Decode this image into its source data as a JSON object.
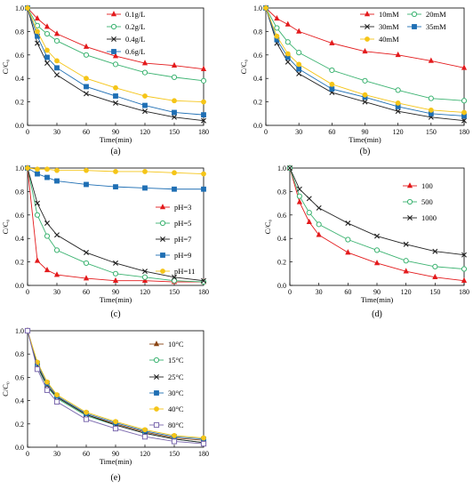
{
  "chart_data": [
    {
      "panel": "(a)",
      "type": "line",
      "xlabel": "Time(min)",
      "ylabel": "C/C₀",
      "x": [
        0,
        10,
        20,
        30,
        60,
        90,
        120,
        150,
        180
      ],
      "xticks": [
        0,
        30,
        60,
        90,
        120,
        150,
        180
      ],
      "yticks": [
        "0.0",
        "0.2",
        "0.4",
        "0.6",
        "0.8",
        "1.0"
      ],
      "xlim": [
        0,
        180
      ],
      "ylim": [
        0,
        1.0
      ],
      "grid": false,
      "legend_position": "top-right",
      "series": [
        {
          "name": "0.1g/L",
          "marker": "triangle",
          "color": "#e31a1c",
          "values": [
            1.0,
            0.91,
            0.84,
            0.78,
            0.67,
            0.59,
            0.53,
            0.51,
            0.48
          ]
        },
        {
          "name": "0.2g/L",
          "marker": "circle",
          "color": "#3cb371",
          "values": [
            1.0,
            0.85,
            0.78,
            0.72,
            0.6,
            0.52,
            0.45,
            0.41,
            0.38
          ]
        },
        {
          "name": "0.4g/L",
          "marker": "x",
          "color": "#222222",
          "values": [
            1.0,
            0.7,
            0.53,
            0.43,
            0.27,
            0.19,
            0.12,
            0.07,
            0.04
          ]
        },
        {
          "name": "0.6g/L",
          "marker": "square",
          "color": "#1f6fb4",
          "values": [
            1.0,
            0.76,
            0.58,
            0.49,
            0.33,
            0.25,
            0.17,
            0.11,
            0.09
          ]
        },
        {
          "name": "",
          "marker": "circle-filled",
          "color": "#f5c518",
          "values": [
            1.0,
            0.8,
            0.64,
            0.55,
            0.4,
            0.32,
            0.25,
            0.21,
            0.2
          ]
        }
      ]
    },
    {
      "panel": "(b)",
      "type": "line",
      "xlabel": "Time(min)",
      "ylabel": "C/C₀",
      "x": [
        0,
        10,
        20,
        30,
        60,
        90,
        120,
        150,
        180
      ],
      "xticks": [
        0,
        30,
        60,
        90,
        120,
        150,
        180
      ],
      "yticks": [
        "0.0",
        "0.2",
        "0.4",
        "0.6",
        "0.8",
        "1.0"
      ],
      "xlim": [
        0,
        180
      ],
      "ylim": [
        0,
        1.0
      ],
      "grid": false,
      "legend_position": "top",
      "series": [
        {
          "name": "10mM",
          "marker": "triangle",
          "color": "#e31a1c",
          "values": [
            1.0,
            0.91,
            0.86,
            0.8,
            0.7,
            0.63,
            0.6,
            0.55,
            0.49
          ]
        },
        {
          "name": "20mM",
          "marker": "circle",
          "color": "#3cb371",
          "values": [
            1.0,
            0.83,
            0.71,
            0.62,
            0.47,
            0.38,
            0.3,
            0.23,
            0.21
          ]
        },
        {
          "name": "30mM",
          "marker": "x",
          "color": "#222222",
          "values": [
            1.0,
            0.7,
            0.54,
            0.44,
            0.28,
            0.2,
            0.12,
            0.07,
            0.04
          ]
        },
        {
          "name": "35mM",
          "marker": "square",
          "color": "#1f6fb4",
          "values": [
            1.0,
            0.73,
            0.58,
            0.48,
            0.31,
            0.24,
            0.16,
            0.1,
            0.08
          ]
        },
        {
          "name": "40mM",
          "marker": "circle-filled",
          "color": "#f5c518",
          "values": [
            1.0,
            0.76,
            0.61,
            0.52,
            0.35,
            0.26,
            0.19,
            0.13,
            0.11
          ]
        }
      ]
    },
    {
      "panel": "(c)",
      "type": "line",
      "xlabel": "Time(min)",
      "ylabel": "C/C₀",
      "x": [
        0,
        10,
        20,
        30,
        60,
        90,
        120,
        150,
        180
      ],
      "xticks": [
        0,
        30,
        60,
        90,
        120,
        150,
        180
      ],
      "yticks": [
        "0.0",
        "0.2",
        "0.4",
        "0.6",
        "0.8",
        "1.0"
      ],
      "xlim": [
        0,
        180
      ],
      "ylim": [
        0,
        1.0
      ],
      "grid": false,
      "legend_position": "right",
      "series": [
        {
          "name": "pH=3",
          "marker": "triangle",
          "color": "#e31a1c",
          "values": [
            1.0,
            0.21,
            0.13,
            0.09,
            0.06,
            0.04,
            0.04,
            0.03,
            0.03
          ]
        },
        {
          "name": "pH=5",
          "marker": "circle",
          "color": "#3cb371",
          "values": [
            1.0,
            0.6,
            0.42,
            0.3,
            0.19,
            0.1,
            0.07,
            0.04,
            0.03
          ]
        },
        {
          "name": "pH=7",
          "marker": "x",
          "color": "#222222",
          "values": [
            1.0,
            0.7,
            0.53,
            0.43,
            0.28,
            0.19,
            0.12,
            0.07,
            0.04
          ]
        },
        {
          "name": "pH=9",
          "marker": "square",
          "color": "#1f6fb4",
          "values": [
            1.0,
            0.95,
            0.92,
            0.89,
            0.86,
            0.84,
            0.83,
            0.82,
            0.82
          ]
        },
        {
          "name": "pH=11",
          "marker": "circle-filled",
          "color": "#f5c518",
          "values": [
            1.0,
            0.99,
            0.99,
            0.98,
            0.98,
            0.97,
            0.97,
            0.96,
            0.95
          ]
        }
      ]
    },
    {
      "panel": "(d)",
      "type": "line",
      "xlabel": "Time(min)",
      "ylabel": "C/C₀",
      "x": [
        0,
        10,
        20,
        30,
        60,
        90,
        120,
        150,
        180
      ],
      "xticks": [
        0,
        30,
        60,
        90,
        120,
        150,
        180
      ],
      "yticks": [
        "0.0",
        "0.2",
        "0.4",
        "0.6",
        "0.8",
        "1.0"
      ],
      "xlim": [
        0,
        180
      ],
      "ylim": [
        0,
        1.0
      ],
      "grid": false,
      "legend_position": "top-right",
      "series": [
        {
          "name": "100",
          "marker": "triangle",
          "color": "#e31a1c",
          "values": [
            1.0,
            0.71,
            0.54,
            0.43,
            0.28,
            0.19,
            0.12,
            0.07,
            0.04
          ]
        },
        {
          "name": "500",
          "marker": "circle",
          "color": "#3cb371",
          "values": [
            1.0,
            0.76,
            0.62,
            0.52,
            0.39,
            0.3,
            0.21,
            0.16,
            0.14
          ]
        },
        {
          "name": "1000",
          "marker": "x",
          "color": "#222222",
          "values": [
            1.0,
            0.82,
            0.74,
            0.66,
            0.53,
            0.42,
            0.35,
            0.29,
            0.26
          ]
        }
      ]
    },
    {
      "panel": "(e)",
      "type": "line",
      "xlabel": "Time(min)",
      "ylabel": "C/C₀",
      "x": [
        0,
        10,
        20,
        30,
        60,
        90,
        120,
        150,
        180
      ],
      "xticks": [
        0,
        30,
        60,
        90,
        120,
        150,
        180
      ],
      "yticks": [
        "0.0",
        "0.2",
        "0.4",
        "0.6",
        "0.8",
        "1.0"
      ],
      "xlim": [
        0,
        180
      ],
      "ylim": [
        0,
        1.0
      ],
      "grid": false,
      "legend_position": "right",
      "series": [
        {
          "name": "10°C",
          "marker": "triangle",
          "color": "#8b4513",
          "values": [
            1.0,
            0.7,
            0.53,
            0.43,
            0.28,
            0.2,
            0.13,
            0.08,
            0.06
          ]
        },
        {
          "name": "15°C",
          "marker": "circle",
          "color": "#3cb371",
          "values": [
            1.0,
            0.69,
            0.52,
            0.42,
            0.27,
            0.19,
            0.12,
            0.07,
            0.04
          ]
        },
        {
          "name": "25°C",
          "marker": "x",
          "color": "#222222",
          "values": [
            1.0,
            0.7,
            0.53,
            0.43,
            0.28,
            0.19,
            0.12,
            0.07,
            0.04
          ]
        },
        {
          "name": "30°C",
          "marker": "square",
          "color": "#1f6fb4",
          "values": [
            1.0,
            0.72,
            0.55,
            0.44,
            0.29,
            0.21,
            0.14,
            0.09,
            0.07
          ]
        },
        {
          "name": "40°C",
          "marker": "circle-filled",
          "color": "#f5c518",
          "values": [
            1.0,
            0.73,
            0.56,
            0.45,
            0.3,
            0.22,
            0.15,
            0.1,
            0.08
          ]
        },
        {
          "name": "80°C",
          "marker": "square-open",
          "color": "#7b68ae",
          "values": [
            1.0,
            0.67,
            0.49,
            0.39,
            0.24,
            0.16,
            0.09,
            0.05,
            0.03
          ]
        }
      ]
    }
  ]
}
